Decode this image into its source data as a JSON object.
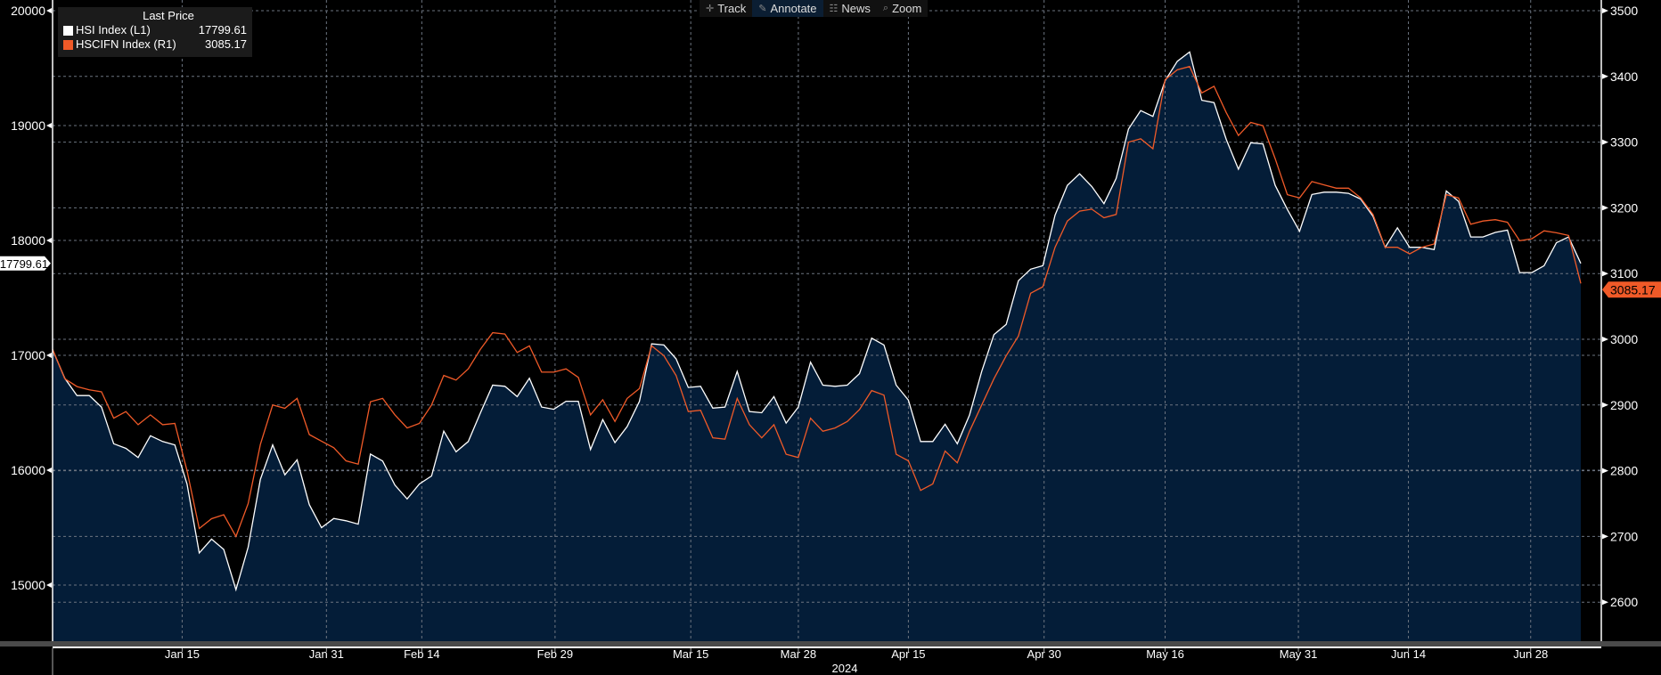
{
  "toolbar": {
    "track": "Track",
    "annotate": "Annotate",
    "news": "News",
    "zoom": "Zoom"
  },
  "legend": {
    "title": "Last Price",
    "items": [
      {
        "name": "HSI Index  (L1)",
        "value": "17799.61",
        "color": "#ffffff"
      },
      {
        "name": "HSCIFN Index  (R1)",
        "value": "3085.17",
        "color": "#f05a28"
      }
    ]
  },
  "chart_data": {
    "type": "line",
    "title": "",
    "year_label": "2024",
    "left_axis": {
      "range": [
        14500,
        20000
      ],
      "ticks": [
        "15000",
        "16000",
        "17000",
        "18000",
        "19000",
        "20000"
      ],
      "last_tag": "17799.61"
    },
    "right_axis": {
      "range": [
        2550,
        3500
      ],
      "ticks": [
        "2600",
        "2700",
        "2800",
        "2900",
        "3000",
        "3100",
        "3200",
        "3300",
        "3400",
        "3500"
      ],
      "last_tag": "3085.17"
    },
    "x_ticks": [
      {
        "label": "Jan 15",
        "at": 10.6
      },
      {
        "label": "Jan 31",
        "at": 22.4
      },
      {
        "label": "Feb 14",
        "at": 30.2
      },
      {
        "label": "Feb 29",
        "at": 41.1
      },
      {
        "label": "Mar 15",
        "at": 52.2
      },
      {
        "label": "Mar 28",
        "at": 61.0
      },
      {
        "label": "Apr 15",
        "at": 70.0
      },
      {
        "label": "Apr 30",
        "at": 81.1
      },
      {
        "label": "May 16",
        "at": 91.0
      },
      {
        "label": "May 31",
        "at": 101.9
      },
      {
        "label": "Jun 14",
        "at": 110.9
      },
      {
        "label": "Jun 28",
        "at": 120.9
      }
    ],
    "series": [
      {
        "name": "HSI Index (L1)",
        "axis": "left",
        "color": "#ffffff",
        "fill": "#041d38",
        "values": [
          17050,
          16800,
          16650,
          16650,
          16550,
          16230,
          16190,
          16110,
          16300,
          16250,
          16220,
          15880,
          15280,
          15400,
          15310,
          14960,
          15330,
          15920,
          16220,
          15960,
          16090,
          15700,
          15500,
          15580,
          15560,
          15530,
          16140,
          16080,
          15870,
          15750,
          15880,
          15950,
          16340,
          16160,
          16250,
          16500,
          16740,
          16730,
          16640,
          16800,
          16550,
          16530,
          16600,
          16600,
          16180,
          16440,
          16240,
          16380,
          16600,
          17100,
          17090,
          16970,
          16720,
          16730,
          16540,
          16550,
          16860,
          16510,
          16500,
          16640,
          16410,
          16550,
          16940,
          16740,
          16730,
          16740,
          16840,
          17150,
          17090,
          16740,
          16610,
          16250,
          16250,
          16400,
          16230,
          16480,
          16860,
          17180,
          17270,
          17650,
          17750,
          17780,
          18220,
          18480,
          18580,
          18470,
          18320,
          18540,
          18970,
          19130,
          19080,
          19390,
          19560,
          19640,
          19220,
          19200,
          18880,
          18620,
          18850,
          18840,
          18480,
          18270,
          18080,
          18400,
          18420,
          18420,
          18410,
          18360,
          18210,
          17940,
          18110,
          17940,
          17940,
          17920,
          18430,
          18340,
          18030,
          18030,
          18070,
          18090,
          17720,
          17720,
          17780,
          17980,
          18030,
          17800
        ]
      },
      {
        "name": "HSCIFN Index (R1)",
        "axis": "right",
        "color": "#f05a28",
        "values": [
          2985,
          2940,
          2928,
          2923,
          2920,
          2880,
          2890,
          2870,
          2885,
          2870,
          2872,
          2800,
          2712,
          2727,
          2733,
          2700,
          2750,
          2840,
          2900,
          2895,
          2910,
          2855,
          2845,
          2835,
          2815,
          2810,
          2905,
          2910,
          2885,
          2865,
          2872,
          2900,
          2945,
          2938,
          2955,
          2985,
          3010,
          3008,
          2980,
          2990,
          2950,
          2950,
          2955,
          2942,
          2885,
          2908,
          2875,
          2910,
          2925,
          2990,
          2975,
          2945,
          2890,
          2892,
          2850,
          2848,
          2910,
          2870,
          2850,
          2870,
          2825,
          2820,
          2880,
          2860,
          2865,
          2875,
          2893,
          2922,
          2915,
          2825,
          2815,
          2770,
          2780,
          2830,
          2812,
          2860,
          2900,
          2940,
          2975,
          3005,
          3070,
          3080,
          3140,
          3180,
          3195,
          3198,
          3185,
          3190,
          3300,
          3305,
          3290,
          3395,
          3410,
          3415,
          3375,
          3385,
          3345,
          3310,
          3330,
          3325,
          3275,
          3220,
          3215,
          3240,
          3235,
          3230,
          3230,
          3215,
          3190,
          3140,
          3140,
          3130,
          3140,
          3145,
          3220,
          3215,
          3175,
          3180,
          3182,
          3178,
          3150,
          3153,
          3165,
          3162,
          3158,
          3085
        ]
      }
    ]
  }
}
